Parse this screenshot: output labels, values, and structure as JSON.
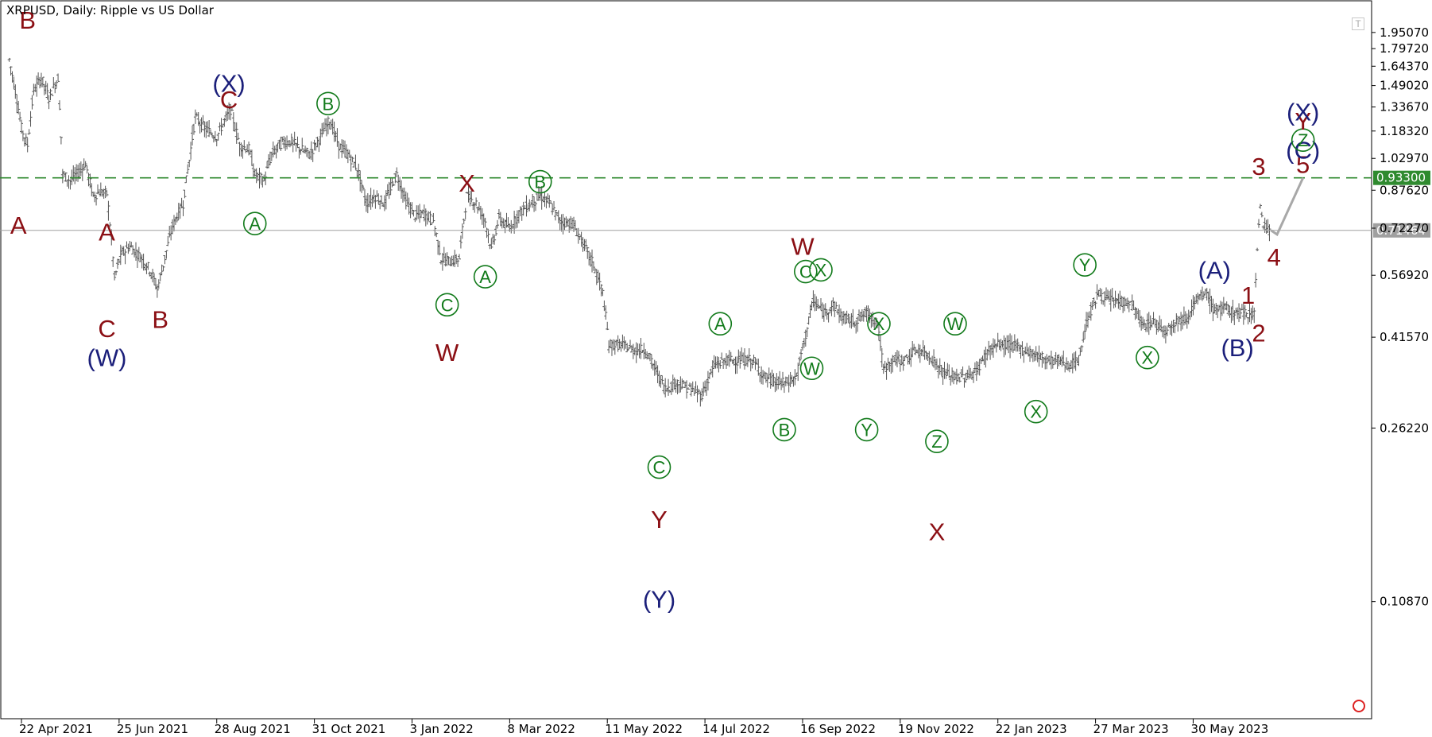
{
  "header": {
    "title": "XRPUSD, Daily:  Ripple vs US Dollar"
  },
  "colors": {
    "bars": "#555555",
    "axis": "#000000",
    "grid": "#ffffff",
    "level": "#2f8a2f",
    "current": "#a0a0a0",
    "maroon": "#8b0f14",
    "navy": "#1b1f7a",
    "green": "#117a1a"
  },
  "icons": {
    "top_right": "text-tool-icon",
    "bottom_right": "circle-marker-icon"
  },
  "chart_data": {
    "type": "ohlc",
    "symbol": "XRPUSD",
    "timeframe": "Daily",
    "description": "Ripple vs US Dollar",
    "y_scale": "log",
    "ylim": [
      0.06,
      2.3
    ],
    "y_ticks": [
      "1.95070",
      "1.79720",
      "1.64370",
      "1.49020",
      "1.33670",
      "1.18320",
      "1.02970",
      "0.87620",
      "0.72270",
      "0.56920",
      "0.41570",
      "0.26220",
      "0.10870"
    ],
    "y_tick_values": [
      1.9507,
      1.7972,
      1.6437,
      1.4902,
      1.3367,
      1.1832,
      1.0297,
      0.8762,
      0.7227,
      0.5692,
      0.4157,
      0.2622,
      0.1087
    ],
    "x_ticks": [
      "22 Apr 2021",
      "25 Jun 2021",
      "28 Aug 2021",
      "31 Oct 2021",
      "3 Jan 2022",
      "8 Mar 2022",
      "11 May 2022",
      "14 Jul 2022",
      "16 Sep 2022",
      "19 Nov 2022",
      "22 Jan 2023",
      "27 Mar 2023",
      "30 May 2023"
    ],
    "x_tick_dates": [
      "2021-04-22",
      "2021-06-25",
      "2021-08-28",
      "2021-10-31",
      "2022-01-03",
      "2022-03-08",
      "2022-05-11",
      "2022-07-14",
      "2022-09-16",
      "2022-11-19",
      "2023-01-22",
      "2023-03-27",
      "2023-05-30"
    ],
    "x_start": "2021-04-22",
    "x_end": "2023-08-31",
    "horizontal_levels": [
      {
        "value": 0.933,
        "label": "0.93300",
        "style": "dashed"
      },
      {
        "value": 0.71464,
        "label": "0.71464",
        "style": "solid"
      }
    ],
    "price_path": [
      [
        "2021-04-14",
        1.7
      ],
      [
        "2021-04-22",
        1.2
      ],
      [
        "2021-04-26",
        1.1
      ],
      [
        "2021-04-30",
        1.45
      ],
      [
        "2021-05-05",
        1.55
      ],
      [
        "2021-05-10",
        1.4
      ],
      [
        "2021-05-16",
        1.55
      ],
      [
        "2021-05-19",
        0.95
      ],
      [
        "2021-05-24",
        0.92
      ],
      [
        "2021-05-28",
        0.95
      ],
      [
        "2021-06-03",
        1.0
      ],
      [
        "2021-06-08",
        0.85
      ],
      [
        "2021-06-12",
        0.87
      ],
      [
        "2021-06-17",
        0.86
      ],
      [
        "2021-06-22",
        0.56
      ],
      [
        "2021-06-26",
        0.63
      ],
      [
        "2021-07-02",
        0.66
      ],
      [
        "2021-07-10",
        0.62
      ],
      [
        "2021-07-16",
        0.58
      ],
      [
        "2021-07-20",
        0.53
      ],
      [
        "2021-07-24",
        0.6
      ],
      [
        "2021-07-30",
        0.73
      ],
      [
        "2021-08-06",
        0.82
      ],
      [
        "2021-08-10",
        1.02
      ],
      [
        "2021-08-14",
        1.27
      ],
      [
        "2021-08-20",
        1.2
      ],
      [
        "2021-08-28",
        1.15
      ],
      [
        "2021-09-06",
        1.32
      ],
      [
        "2021-09-12",
        1.1
      ],
      [
        "2021-09-18",
        1.08
      ],
      [
        "2021-09-22",
        0.95
      ],
      [
        "2021-09-28",
        0.92
      ],
      [
        "2021-10-03",
        1.05
      ],
      [
        "2021-10-10",
        1.12
      ],
      [
        "2021-10-16",
        1.12
      ],
      [
        "2021-10-22",
        1.08
      ],
      [
        "2021-10-28",
        1.05
      ],
      [
        "2021-11-04",
        1.15
      ],
      [
        "2021-11-10",
        1.25
      ],
      [
        "2021-11-16",
        1.1
      ],
      [
        "2021-11-22",
        1.05
      ],
      [
        "2021-11-28",
        0.98
      ],
      [
        "2021-12-04",
        0.82
      ],
      [
        "2021-12-10",
        0.85
      ],
      [
        "2021-12-16",
        0.82
      ],
      [
        "2021-12-24",
        0.95
      ],
      [
        "2021-12-30",
        0.83
      ],
      [
        "2022-01-05",
        0.77
      ],
      [
        "2022-01-11",
        0.78
      ],
      [
        "2022-01-17",
        0.75
      ],
      [
        "2022-01-22",
        0.62
      ],
      [
        "2022-01-28",
        0.61
      ],
      [
        "2022-02-03",
        0.62
      ],
      [
        "2022-02-08",
        0.85
      ],
      [
        "2022-02-14",
        0.82
      ],
      [
        "2022-02-20",
        0.75
      ],
      [
        "2022-02-24",
        0.65
      ],
      [
        "2022-03-01",
        0.76
      ],
      [
        "2022-03-08",
        0.72
      ],
      [
        "2022-03-14",
        0.78
      ],
      [
        "2022-03-22",
        0.82
      ],
      [
        "2022-03-28",
        0.85
      ],
      [
        "2022-04-03",
        0.82
      ],
      [
        "2022-04-10",
        0.75
      ],
      [
        "2022-04-18",
        0.74
      ],
      [
        "2022-04-24",
        0.68
      ],
      [
        "2022-05-02",
        0.6
      ],
      [
        "2022-05-08",
        0.52
      ],
      [
        "2022-05-12",
        0.4
      ],
      [
        "2022-05-20",
        0.4
      ],
      [
        "2022-05-28",
        0.39
      ],
      [
        "2022-06-05",
        0.39
      ],
      [
        "2022-06-12",
        0.35
      ],
      [
        "2022-06-18",
        0.32
      ],
      [
        "2022-06-26",
        0.33
      ],
      [
        "2022-07-04",
        0.32
      ],
      [
        "2022-07-12",
        0.31
      ],
      [
        "2022-07-20",
        0.36
      ],
      [
        "2022-07-28",
        0.37
      ],
      [
        "2022-08-06",
        0.37
      ],
      [
        "2022-08-14",
        0.37
      ],
      [
        "2022-08-22",
        0.34
      ],
      [
        "2022-08-30",
        0.33
      ],
      [
        "2022-09-06",
        0.33
      ],
      [
        "2022-09-12",
        0.34
      ],
      [
        "2022-09-18",
        0.42
      ],
      [
        "2022-09-23",
        0.5
      ],
      [
        "2022-09-30",
        0.47
      ],
      [
        "2022-10-06",
        0.49
      ],
      [
        "2022-10-12",
        0.46
      ],
      [
        "2022-10-20",
        0.45
      ],
      [
        "2022-10-28",
        0.47
      ],
      [
        "2022-11-04",
        0.45
      ],
      [
        "2022-11-08",
        0.35
      ],
      [
        "2022-11-14",
        0.37
      ],
      [
        "2022-11-22",
        0.37
      ],
      [
        "2022-11-30",
        0.39
      ],
      [
        "2022-12-08",
        0.38
      ],
      [
        "2022-12-16",
        0.35
      ],
      [
        "2022-12-24",
        0.34
      ],
      [
        "2023-01-01",
        0.34
      ],
      [
        "2023-01-08",
        0.35
      ],
      [
        "2023-01-16",
        0.39
      ],
      [
        "2023-01-22",
        0.4
      ],
      [
        "2023-01-30",
        0.4
      ],
      [
        "2023-02-08",
        0.39
      ],
      [
        "2023-02-16",
        0.38
      ],
      [
        "2023-02-24",
        0.37
      ],
      [
        "2023-03-04",
        0.37
      ],
      [
        "2023-03-10",
        0.36
      ],
      [
        "2023-03-16",
        0.37
      ],
      [
        "2023-03-22",
        0.46
      ],
      [
        "2023-03-29",
        0.52
      ],
      [
        "2023-04-05",
        0.5
      ],
      [
        "2023-04-12",
        0.5
      ],
      [
        "2023-04-20",
        0.49
      ],
      [
        "2023-04-27",
        0.44
      ],
      [
        "2023-05-04",
        0.45
      ],
      [
        "2023-05-12",
        0.43
      ],
      [
        "2023-05-18",
        0.45
      ],
      [
        "2023-05-26",
        0.46
      ],
      [
        "2023-06-01",
        0.5
      ],
      [
        "2023-06-08",
        0.52
      ],
      [
        "2023-06-12",
        0.48
      ],
      [
        "2023-06-20",
        0.48
      ],
      [
        "2023-06-28",
        0.47
      ],
      [
        "2023-07-04",
        0.47
      ],
      [
        "2023-07-09",
        0.47
      ],
      [
        "2023-07-13",
        0.82
      ],
      [
        "2023-07-15",
        0.72
      ],
      [
        "2023-07-17",
        0.74
      ],
      [
        "2023-07-19",
        0.71
      ],
      [
        "2023-07-20",
        0.71464
      ]
    ],
    "projection": [
      [
        "2023-07-20",
        0.71464
      ],
      [
        "2023-07-24",
        0.7
      ],
      [
        "2023-08-10",
        0.933
      ]
    ],
    "wave_labels": [
      {
        "text": "A",
        "date": "2021-04-20",
        "price": 0.735,
        "color": "maroon"
      },
      {
        "text": "B",
        "date": "2021-04-26",
        "price": 2.08,
        "color": "maroon"
      },
      {
        "text": "A",
        "date": "2021-06-17",
        "price": 0.71,
        "color": "maroon"
      },
      {
        "text": "C",
        "date": "2021-06-17",
        "price": 0.435,
        "color": "maroon"
      },
      {
        "text": "(W)",
        "date": "2021-06-17",
        "price": 0.375,
        "color": "navy"
      },
      {
        "text": "B",
        "date": "2021-07-22",
        "price": 0.455,
        "color": "maroon"
      },
      {
        "text": "(X)",
        "date": "2021-09-05",
        "price": 1.51,
        "color": "navy"
      },
      {
        "text": "C",
        "date": "2021-09-05",
        "price": 1.39,
        "color": "maroon"
      },
      {
        "text": "A",
        "date": "2021-09-22",
        "price": 0.74,
        "circled": true,
        "color": "green"
      },
      {
        "text": "B",
        "date": "2021-11-09",
        "price": 1.36,
        "circled": true,
        "color": "green"
      },
      {
        "text": "X",
        "date": "2022-02-08",
        "price": 0.91,
        "color": "maroon"
      },
      {
        "text": "C",
        "date": "2022-01-26",
        "price": 0.49,
        "circled": true,
        "color": "green"
      },
      {
        "text": "W",
        "date": "2022-01-26",
        "price": 0.385,
        "color": "maroon"
      },
      {
        "text": "A",
        "date": "2022-02-20",
        "price": 0.565,
        "circled": true,
        "color": "green"
      },
      {
        "text": "B",
        "date": "2022-03-28",
        "price": 0.915,
        "circled": true,
        "color": "green"
      },
      {
        "text": "C",
        "date": "2022-06-14",
        "price": 0.215,
        "circled": true,
        "color": "green"
      },
      {
        "text": "Y",
        "date": "2022-06-14",
        "price": 0.165,
        "color": "maroon"
      },
      {
        "text": "(Y)",
        "date": "2022-06-14",
        "price": 0.11,
        "color": "navy"
      },
      {
        "text": "A",
        "date": "2022-07-24",
        "price": 0.445,
        "circled": true,
        "color": "green"
      },
      {
        "text": "B",
        "date": "2022-09-04",
        "price": 0.26,
        "circled": true,
        "color": "green"
      },
      {
        "text": "W",
        "date": "2022-09-16",
        "price": 0.66,
        "color": "maroon"
      },
      {
        "text": "C",
        "date": "2022-09-18",
        "price": 0.58,
        "circled": true,
        "color": "green"
      },
      {
        "text": "X",
        "date": "2022-09-28",
        "price": 0.585,
        "circled": true,
        "color": "green"
      },
      {
        "text": "W",
        "date": "2022-09-22",
        "price": 0.355,
        "circled": true,
        "color": "green"
      },
      {
        "text": "Y",
        "date": "2022-10-28",
        "price": 0.26,
        "circled": true,
        "color": "green"
      },
      {
        "text": "X",
        "date": "2022-11-05",
        "price": 0.445,
        "circled": true,
        "color": "green"
      },
      {
        "text": "Z",
        "date": "2022-12-13",
        "price": 0.245,
        "circled": true,
        "color": "green"
      },
      {
        "text": "X",
        "date": "2022-12-13",
        "price": 0.155,
        "color": "maroon"
      },
      {
        "text": "W",
        "date": "2022-12-25",
        "price": 0.445,
        "circled": true,
        "color": "green"
      },
      {
        "text": "X",
        "date": "2023-02-16",
        "price": 0.285,
        "circled": true,
        "color": "green"
      },
      {
        "text": "Y",
        "date": "2023-03-20",
        "price": 0.6,
        "circled": true,
        "color": "green"
      },
      {
        "text": "X",
        "date": "2023-04-30",
        "price": 0.375,
        "circled": true,
        "color": "green"
      },
      {
        "text": "(A)",
        "date": "2023-06-13",
        "price": 0.585,
        "color": "navy"
      },
      {
        "text": "(B)",
        "date": "2023-06-28",
        "price": 0.395,
        "color": "navy"
      },
      {
        "text": "1",
        "date": "2023-07-05",
        "price": 0.515,
        "color": "maroon"
      },
      {
        "text": "2",
        "date": "2023-07-12",
        "price": 0.425,
        "color": "maroon"
      },
      {
        "text": "3",
        "date": "2023-07-12",
        "price": 0.99,
        "color": "maroon"
      },
      {
        "text": "4",
        "date": "2023-07-22",
        "price": 0.625,
        "color": "maroon"
      },
      {
        "text": "5",
        "date": "2023-08-10",
        "price": 1.0,
        "color": "maroon"
      },
      {
        "text": "(C)",
        "date": "2023-08-10",
        "price": 1.075,
        "color": "navy"
      },
      {
        "text": "Z",
        "date": "2023-08-10",
        "price": 1.13,
        "circled": true,
        "color": "green"
      },
      {
        "text": "Y",
        "date": "2023-08-10",
        "price": 1.245,
        "color": "maroon"
      },
      {
        "text": "(X)",
        "date": "2023-08-10",
        "price": 1.305,
        "color": "navy"
      }
    ]
  }
}
